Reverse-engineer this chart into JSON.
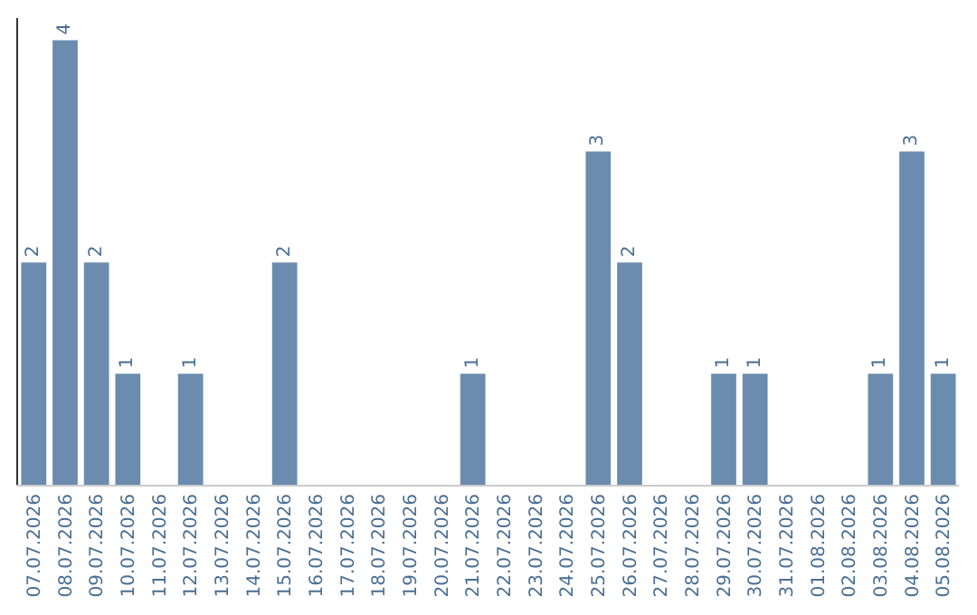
{
  "chart_data": {
    "type": "bar",
    "categories": [
      "07.07.2026",
      "08.07.2026",
      "09.07.2026",
      "10.07.2026",
      "11.07.2026",
      "12.07.2026",
      "13.07.2026",
      "14.07.2026",
      "15.07.2026",
      "16.07.2026",
      "17.07.2026",
      "18.07.2026",
      "19.07.2026",
      "20.07.2026",
      "21.07.2026",
      "22.07.2026",
      "23.07.2026",
      "24.07.2026",
      "25.07.2026",
      "26.07.2026",
      "27.07.2026",
      "28.07.2026",
      "29.07.2026",
      "30.07.2026",
      "31.07.2026",
      "01.08.2026",
      "02.08.2026",
      "03.08.2026",
      "04.08.2026",
      "05.08.2026"
    ],
    "values": [
      2,
      4,
      2,
      1,
      0,
      1,
      0,
      0,
      2,
      0,
      0,
      0,
      0,
      0,
      1,
      0,
      0,
      0,
      3,
      2,
      0,
      0,
      1,
      1,
      0,
      0,
      0,
      1,
      3,
      1
    ],
    "value_labels": [
      "2",
      "4",
      "2",
      "1",
      null,
      "1",
      null,
      null,
      "2",
      null,
      null,
      null,
      null,
      null,
      "1",
      null,
      null,
      null,
      "3",
      "2",
      null,
      null,
      "1",
      "1",
      null,
      null,
      null,
      "1",
      "3",
      "1"
    ],
    "color": "#6b8cae",
    "ylim": [
      0,
      4.2
    ],
    "tick_labels": "x",
    "grid": false,
    "legend": false
  }
}
